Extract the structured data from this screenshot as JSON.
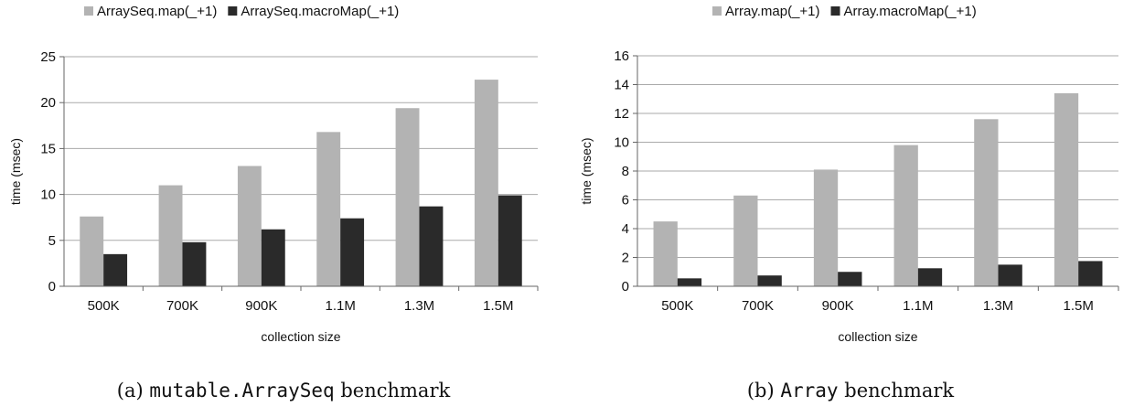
{
  "chart_data": [
    {
      "type": "bar",
      "categories": [
        "500K",
        "700K",
        "900K",
        "1.1M",
        "1.3M",
        "1.5M"
      ],
      "series": [
        {
          "name": "ArraySeq.map(_+1)",
          "values": [
            7.6,
            11.0,
            13.1,
            16.8,
            19.4,
            22.5
          ]
        },
        {
          "name": "ArraySeq.macroMap(_+1)",
          "values": [
            3.5,
            4.8,
            6.2,
            7.4,
            8.7,
            9.9
          ]
        }
      ],
      "xlabel": "collection size",
      "ylabel": "time (msec)",
      "ylim": [
        0,
        25
      ],
      "yticks": [
        0,
        5,
        10,
        15,
        20,
        25
      ],
      "grid": true,
      "legend": "top",
      "colors": [
        "#b3b3b3",
        "#2a2a2a"
      ]
    },
    {
      "type": "bar",
      "categories": [
        "500K",
        "700K",
        "900K",
        "1.1M",
        "1.3M",
        "1.5M"
      ],
      "series": [
        {
          "name": "Array.map(_+1)",
          "values": [
            4.5,
            6.3,
            8.1,
            9.8,
            11.6,
            13.4
          ]
        },
        {
          "name": "Array.macroMap(_+1)",
          "values": [
            0.55,
            0.75,
            1.0,
            1.25,
            1.5,
            1.75
          ]
        }
      ],
      "xlabel": "collection size",
      "ylabel": "time (msec)",
      "ylim": [
        0,
        16
      ],
      "yticks": [
        0,
        2,
        4,
        6,
        8,
        10,
        12,
        14,
        16
      ],
      "grid": true,
      "legend": "top",
      "colors": [
        "#b3b3b3",
        "#2a2a2a"
      ]
    }
  ],
  "captions": [
    {
      "prefix": "(a) ",
      "code": "mutable.ArraySeq",
      "suffix": " benchmark"
    },
    {
      "prefix": "(b) ",
      "code": "Array",
      "suffix": " benchmark"
    }
  ]
}
